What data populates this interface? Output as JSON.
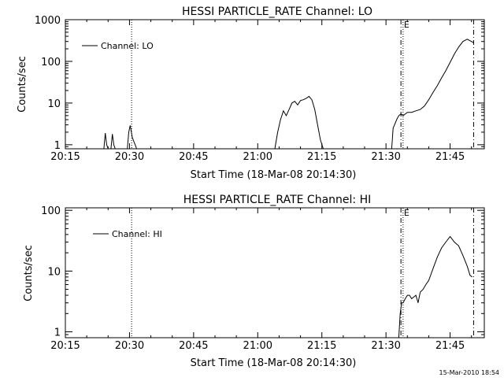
{
  "colors": {
    "background": "#ffffff",
    "ink": "#000000"
  },
  "timestamp": "15-Mar-2010 18:54",
  "chart_data": [
    {
      "type": "line",
      "title": "HESSI PARTICLE_RATE Channel: LO",
      "xlabel": "Start Time (18-Mar-08 20:14:30)",
      "ylabel": "Counts/sec",
      "y_scale": "log",
      "ylim": [
        0.8,
        1000
      ],
      "xlim": [
        "20:15",
        "21:53"
      ],
      "x_ticks": [
        "20:15",
        "20:30",
        "20:45",
        "21:00",
        "21:15",
        "21:30",
        "21:45"
      ],
      "y_ticks": [
        "1",
        "10",
        "100",
        "1000"
      ],
      "legend": {
        "label": "Channel: LO",
        "position": "top-left"
      },
      "vertical_markers": [
        {
          "time": "20:30:30",
          "style": "dotted"
        },
        {
          "time": "21:33:30",
          "style": "dash-dot"
        },
        {
          "time": "21:34:00",
          "style": "dotted",
          "label": "E"
        },
        {
          "time": "21:50:30",
          "style": "dash-dot"
        }
      ],
      "segments": [
        {
          "x": [
            "20:24:00",
            "20:24:20",
            "20:24:40",
            "20:25:00"
          ],
          "y": [
            0.8,
            1.9,
            1.0,
            0.8
          ]
        },
        {
          "x": [
            "20:25:40",
            "20:26:00",
            "20:26:20",
            "20:26:40"
          ],
          "y": [
            0.8,
            1.8,
            1.0,
            0.8
          ]
        },
        {
          "x": [
            "20:29:30",
            "20:29:50",
            "20:30:10",
            "20:30:40",
            "20:31:00",
            "20:31:20",
            "20:31:40"
          ],
          "y": [
            0.8,
            2.0,
            2.9,
            1.5,
            1.2,
            1.0,
            0.8
          ]
        },
        {
          "x": [
            "21:04:00",
            "21:04:40",
            "21:05:20",
            "21:06:00",
            "21:06:40",
            "21:07:20",
            "21:08:00",
            "21:08:40",
            "21:09:20",
            "21:10:00",
            "21:10:40",
            "21:11:20",
            "21:12:00",
            "21:12:40",
            "21:13:20",
            "21:14:00",
            "21:14:40",
            "21:15:20"
          ],
          "y": [
            0.8,
            2.0,
            4.0,
            6.5,
            5.0,
            7.0,
            10.0,
            11.0,
            9.0,
            11.5,
            12.0,
            13.0,
            14.5,
            12.0,
            7.0,
            3.0,
            1.3,
            0.8
          ]
        },
        {
          "x": [
            "21:31:20",
            "21:31:40",
            "21:32:00",
            "21:32:30",
            "21:33:00",
            "21:33:30",
            "21:34:00",
            "21:35:00",
            "21:36:00",
            "21:37:00",
            "21:38:00",
            "21:39:00",
            "21:40:00",
            "21:41:00",
            "21:42:00",
            "21:43:00",
            "21:44:00",
            "21:45:00",
            "21:46:00",
            "21:47:00",
            "21:48:00",
            "21:49:00",
            "21:50:00",
            "21:50:30"
          ],
          "y": [
            0.8,
            2.5,
            3.0,
            4.0,
            5.0,
            5.5,
            5.0,
            6.0,
            6.0,
            6.5,
            7.0,
            8.5,
            12.0,
            18.0,
            26.0,
            40.0,
            60.0,
            95.0,
            150.0,
            220.0,
            300.0,
            340.0,
            300.0,
            280.0
          ]
        }
      ]
    },
    {
      "type": "line",
      "title": "HESSI PARTICLE_RATE Channel: HI",
      "xlabel": "Start Time (18-Mar-08 20:14:30)",
      "ylabel": "Counts/sec",
      "y_scale": "log",
      "ylim": [
        0.8,
        110
      ],
      "xlim": [
        "20:15",
        "21:53"
      ],
      "x_ticks": [
        "20:15",
        "20:30",
        "20:45",
        "21:00",
        "21:15",
        "21:30",
        "21:45"
      ],
      "y_ticks": [
        "1",
        "10",
        "100"
      ],
      "legend": {
        "label": "Channel: HI",
        "position": "top-left"
      },
      "vertical_markers": [
        {
          "time": "20:30:30",
          "style": "dotted"
        },
        {
          "time": "21:33:30",
          "style": "dash-dot"
        },
        {
          "time": "21:34:00",
          "style": "dotted",
          "label": "E"
        },
        {
          "time": "21:50:30",
          "style": "dash-dot"
        }
      ],
      "segments": [
        {
          "x": [
            "21:33:00",
            "21:33:20",
            "21:33:40",
            "21:34:00",
            "21:34:30",
            "21:35:00",
            "21:35:30",
            "21:36:00",
            "21:37:00",
            "21:37:30",
            "21:38:00",
            "21:38:40",
            "21:39:20",
            "21:40:00",
            "21:41:00",
            "21:42:00",
            "21:43:00",
            "21:44:00",
            "21:45:00",
            "21:46:00",
            "21:47:00",
            "21:48:00",
            "21:49:00",
            "21:49:40",
            "21:50:10"
          ],
          "y": [
            0.8,
            2.0,
            3.0,
            3.0,
            3.5,
            4.0,
            4.0,
            3.5,
            4.0,
            3.0,
            4.5,
            5.0,
            6.0,
            7.0,
            11.0,
            17.0,
            24.0,
            30.0,
            37.0,
            30.0,
            26.0,
            18.0,
            12.0,
            8.5,
            8.0
          ]
        }
      ]
    }
  ]
}
